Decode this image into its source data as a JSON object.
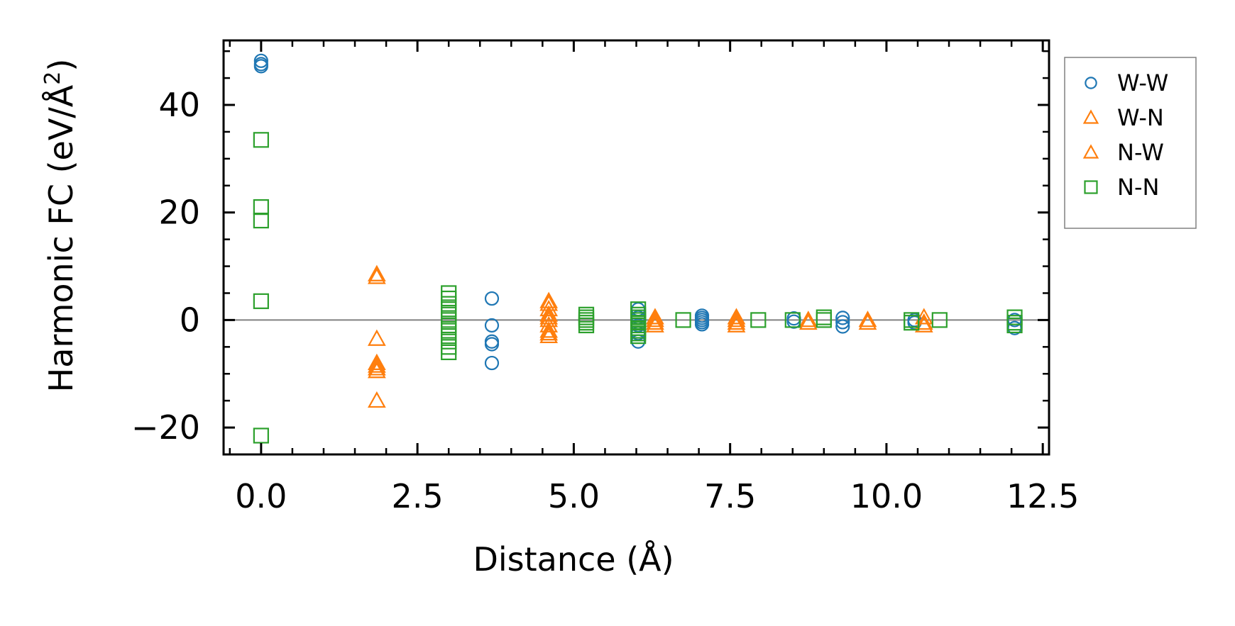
{
  "chart_data": {
    "type": "scatter",
    "title": "",
    "xlabel": "Distance (Å)",
    "ylabel_main": "Harmonic FC (eV/Å",
    "ylabel_sup": "2",
    "ylabel_close": ")",
    "xlim": [
      -0.6,
      12.6
    ],
    "ylim": [
      -25,
      52
    ],
    "xticks": [
      0.0,
      2.5,
      5.0,
      7.5,
      10.0,
      12.5
    ],
    "xtick_labels": [
      "0.0",
      "2.5",
      "5.0",
      "7.5",
      "10.0",
      "12.5"
    ],
    "yticks": [
      -20,
      0,
      20,
      40
    ],
    "ytick_labels": [
      "−20",
      "0",
      "20",
      "40"
    ],
    "reference_line_y": 0,
    "legend_position": "outside-right-top",
    "series": [
      {
        "name": "W-W",
        "marker": "circle",
        "color": "#1f77b4",
        "points": [
          [
            0.0,
            48.2
          ],
          [
            0.0,
            47.6
          ],
          [
            0.0,
            47.2
          ],
          [
            3.69,
            4.0
          ],
          [
            3.69,
            -1.0
          ],
          [
            3.69,
            -4.0
          ],
          [
            3.69,
            -4.5
          ],
          [
            3.69,
            -8.0
          ],
          [
            6.03,
            2.0
          ],
          [
            6.03,
            0.5
          ],
          [
            6.03,
            -1.0
          ],
          [
            6.03,
            -2.5
          ],
          [
            6.03,
            -4.0
          ],
          [
            7.05,
            0.8
          ],
          [
            7.05,
            0.4
          ],
          [
            7.05,
            0.0
          ],
          [
            7.05,
            -0.4
          ],
          [
            7.05,
            -0.8
          ],
          [
            8.52,
            0.3
          ],
          [
            8.52,
            -0.3
          ],
          [
            9.3,
            0.4
          ],
          [
            9.3,
            -0.4
          ],
          [
            9.3,
            -1.2
          ],
          [
            10.45,
            0.0
          ],
          [
            10.45,
            -0.5
          ],
          [
            12.05,
            0.0
          ],
          [
            12.05,
            -1.5
          ]
        ]
      },
      {
        "name": "W-N",
        "marker": "triangle",
        "color": "#ff7f0e",
        "points": [
          [
            1.85,
            8.5
          ],
          [
            1.85,
            -3.5
          ],
          [
            1.85,
            -8.0
          ],
          [
            1.85,
            -9.0
          ],
          [
            1.85,
            -15.0
          ],
          [
            4.6,
            3.5
          ],
          [
            4.6,
            2.0
          ],
          [
            4.6,
            0.5
          ],
          [
            4.6,
            -1.0
          ],
          [
            4.6,
            -2.5
          ],
          [
            6.3,
            0.5
          ],
          [
            6.3,
            -0.5
          ],
          [
            7.6,
            0.5
          ],
          [
            7.6,
            -0.5
          ],
          [
            8.75,
            0.0
          ],
          [
            9.7,
            0.0
          ],
          [
            10.6,
            0.5
          ],
          [
            10.6,
            -0.5
          ]
        ]
      },
      {
        "name": "N-W",
        "marker": "triangle",
        "color": "#ff7f0e",
        "points": [
          [
            1.85,
            8.0
          ],
          [
            1.85,
            -8.5
          ],
          [
            1.85,
            -9.5
          ],
          [
            4.6,
            3.0
          ],
          [
            4.6,
            1.0
          ],
          [
            4.6,
            0.0
          ],
          [
            4.6,
            -2.0
          ],
          [
            4.6,
            -3.0
          ],
          [
            6.3,
            0.0
          ],
          [
            6.3,
            -1.0
          ],
          [
            7.6,
            0.0
          ],
          [
            7.6,
            -1.0
          ],
          [
            8.75,
            -0.5
          ],
          [
            9.7,
            -0.5
          ],
          [
            10.6,
            -1.0
          ]
        ]
      },
      {
        "name": "N-N",
        "marker": "square",
        "color": "#2ca02c",
        "points": [
          [
            0.0,
            33.5
          ],
          [
            0.0,
            21.0
          ],
          [
            0.0,
            18.5
          ],
          [
            0.0,
            3.5
          ],
          [
            0.0,
            -21.5
          ],
          [
            3.0,
            5.0
          ],
          [
            3.0,
            4.0
          ],
          [
            3.0,
            3.0
          ],
          [
            3.0,
            2.0
          ],
          [
            3.0,
            1.0
          ],
          [
            3.0,
            0.0
          ],
          [
            3.0,
            -1.0
          ],
          [
            3.0,
            -2.0
          ],
          [
            3.0,
            -3.0
          ],
          [
            3.0,
            -4.0
          ],
          [
            3.0,
            -5.0
          ],
          [
            3.0,
            -6.0
          ],
          [
            5.2,
            1.0
          ],
          [
            5.2,
            0.5
          ],
          [
            5.2,
            0.0
          ],
          [
            5.2,
            -0.5
          ],
          [
            5.2,
            -1.0
          ],
          [
            6.03,
            2.0
          ],
          [
            6.03,
            1.0
          ],
          [
            6.03,
            0.5
          ],
          [
            6.03,
            0.0
          ],
          [
            6.03,
            -0.5
          ],
          [
            6.03,
            -1.0
          ],
          [
            6.03,
            -1.5
          ],
          [
            6.03,
            -2.0
          ],
          [
            6.03,
            -2.5
          ],
          [
            6.03,
            -3.0
          ],
          [
            6.75,
            0.0
          ],
          [
            7.95,
            0.0
          ],
          [
            8.5,
            0.0
          ],
          [
            9.0,
            0.5
          ],
          [
            9.0,
            0.0
          ],
          [
            10.4,
            0.0
          ],
          [
            10.4,
            -0.5
          ],
          [
            10.85,
            0.0
          ],
          [
            12.05,
            0.5
          ],
          [
            12.05,
            -0.5
          ],
          [
            12.05,
            -1.0
          ]
        ]
      }
    ]
  }
}
